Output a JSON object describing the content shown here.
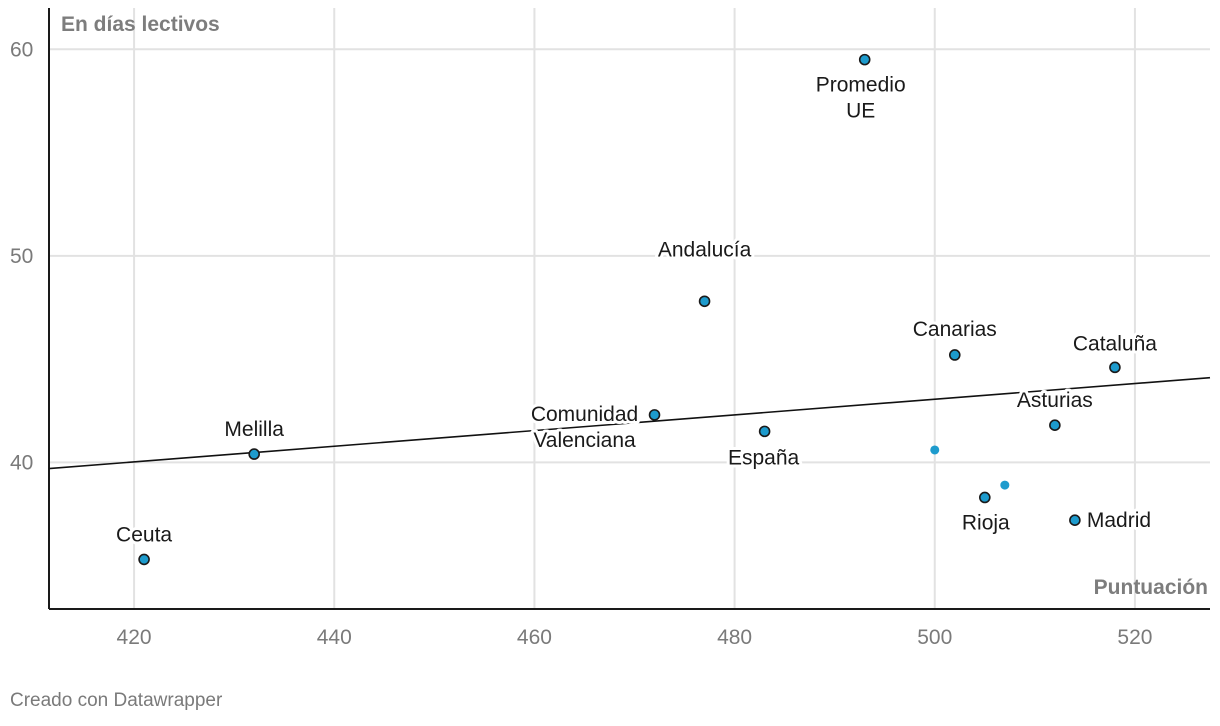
{
  "chart_data": {
    "type": "scatter",
    "title": "",
    "xlabel": "Puntuación",
    "ylabel": "En días lectivos",
    "xlim": [
      411.5,
      527.5
    ],
    "ylim": [
      32.9,
      62.0
    ],
    "x_ticks": [
      420,
      440,
      460,
      480,
      500,
      520
    ],
    "y_ticks": [
      40,
      50,
      60
    ],
    "grid": true,
    "trendline": {
      "x": [
        411.5,
        527.5
      ],
      "y": [
        39.7,
        44.1
      ],
      "color": "#111111"
    },
    "points": [
      {
        "label": "Promedio\nUE",
        "x": 493,
        "y": 59.5
      },
      {
        "label": "Andalucía",
        "x": 477,
        "y": 47.8
      },
      {
        "label": "Canarias",
        "x": 502,
        "y": 45.2
      },
      {
        "label": "Cataluña",
        "x": 518,
        "y": 44.6
      },
      {
        "label": "Comunidad\nValenciana",
        "x": 472,
        "y": 42.3
      },
      {
        "label": "Asturias",
        "x": 512,
        "y": 41.8
      },
      {
        "label": "España",
        "x": 483,
        "y": 41.5
      },
      {
        "label": "Melilla",
        "x": 432,
        "y": 40.4
      },
      {
        "label": "",
        "x": 500,
        "y": 40.6
      },
      {
        "label": "",
        "x": 507,
        "y": 38.9
      },
      {
        "label": "Rioja",
        "x": 505,
        "y": 38.3
      },
      {
        "label": "Madrid",
        "x": 514,
        "y": 37.2
      },
      {
        "label": "Ceuta",
        "x": 421,
        "y": 35.3
      }
    ],
    "colors": {
      "point": "#1d9bcd",
      "outline": "#1a1a1a",
      "unlabeled_point": "#1d9bcd"
    }
  },
  "footer": {
    "credit": "Creado con Datawrapper"
  }
}
